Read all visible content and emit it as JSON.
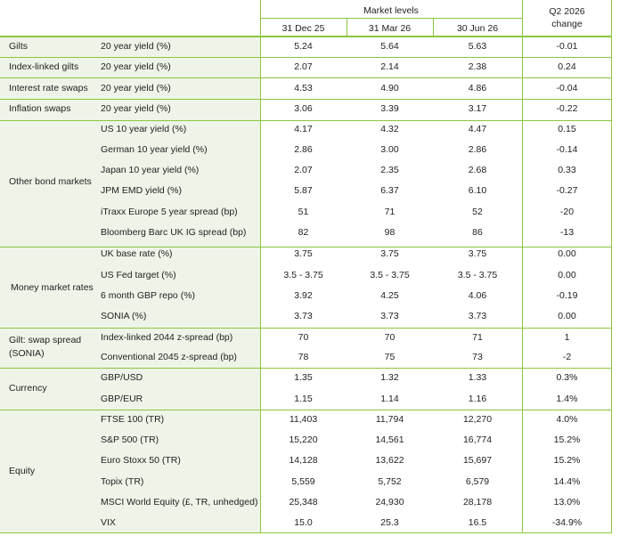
{
  "header": {
    "market_levels": "Market levels",
    "q2_change_line1": "Q2 2026",
    "q2_change_line2": "change",
    "dates": [
      "31 Dec 25",
      "31 Mar 26",
      "30 Jun 26"
    ]
  },
  "rows": [
    {
      "category": "Gilts",
      "item": "20 year yield (%)",
      "v": [
        "5.24",
        "5.64",
        "5.63",
        "-0.01"
      ]
    },
    {
      "category": "Index-linked gilts",
      "item": "20 year yield (%)",
      "v": [
        "2.07",
        "2.14",
        "2.38",
        "0.24"
      ]
    },
    {
      "category": "Interest rate swaps",
      "item": "20 year yield (%)",
      "v": [
        "4.53",
        "4.90",
        "4.86",
        "-0.04"
      ]
    },
    {
      "category": "Inflation swaps",
      "item": "20 year yield (%)",
      "v": [
        "3.06",
        "3.39",
        "3.17",
        "-0.22"
      ]
    },
    {
      "item": "US 10 year yield (%)",
      "v": [
        "4.17",
        "4.32",
        "4.47",
        "0.15"
      ]
    },
    {
      "item": "German 10 year yield (%)",
      "v": [
        "2.86",
        "3.00",
        "2.86",
        "-0.14"
      ]
    },
    {
      "item": "Japan 10 year yield (%)",
      "v": [
        "2.07",
        "2.35",
        "2.68",
        "0.33"
      ]
    },
    {
      "item": "JPM EMD yield (%)",
      "v": [
        "5.87",
        "6.37",
        "6.10",
        "-0.27"
      ]
    },
    {
      "item": "iTraxx Europe 5 year spread (bp)",
      "v": [
        "51",
        "71",
        "52",
        "-20"
      ]
    },
    {
      "item": "Bloomberg Barc UK IG spread (bp)",
      "v": [
        "82",
        "98",
        "86",
        "-13"
      ]
    },
    {
      "item": "UK base rate (%)",
      "v": [
        "3.75",
        "3.75",
        "3.75",
        "0.00"
      ]
    },
    {
      "item": "US Fed target (%)",
      "v": [
        "3.5 - 3.75",
        "3.5 - 3.75",
        "3.5 - 3.75",
        "0.00"
      ]
    },
    {
      "item": "6 month GBP repo (%)",
      "v": [
        "3.92",
        "4.25",
        "4.06",
        "-0.19"
      ]
    },
    {
      "item": "SONIA (%)",
      "v": [
        "3.73",
        "3.73",
        "3.73",
        "0.00"
      ]
    },
    {
      "item": "Index-linked 2044 z-spread (bp)",
      "v": [
        "70",
        "70",
        "71",
        "1"
      ]
    },
    {
      "item": "Conventional 2045 z-spread (bp)",
      "v": [
        "78",
        "75",
        "73",
        "-2"
      ]
    },
    {
      "item": "GBP/USD",
      "v": [
        "1.35",
        "1.32",
        "1.33",
        "0.3%"
      ]
    },
    {
      "item": "GBP/EUR",
      "v": [
        "1.15",
        "1.14",
        "1.16",
        "1.4%"
      ]
    },
    {
      "item": "FTSE 100 (TR)",
      "v": [
        "11,403",
        "11,794",
        "12,270",
        "4.0%"
      ]
    },
    {
      "item": "S&P 500 (TR)",
      "v": [
        "15,220",
        "14,561",
        "16,774",
        "15.2%"
      ]
    },
    {
      "item": "Euro Stoxx 50 (TR)",
      "v": [
        "14,128",
        "13,622",
        "15,697",
        "15.2%"
      ]
    },
    {
      "item": "Topix (TR)",
      "v": [
        "5,559",
        "5,752",
        "6,579",
        "14.4%"
      ]
    },
    {
      "item": "MSCI World Equity (£, TR, unhedged)",
      "v": [
        "25,348",
        "24,930",
        "28,178",
        "13.0%"
      ]
    },
    {
      "item": "VIX",
      "v": [
        "15.0",
        "25.3",
        "16.5",
        "-34.9%"
      ]
    }
  ],
  "groups": [
    {
      "label": "Other bond markets"
    },
    {
      "label": "Money market rates"
    },
    {
      "label_line1": "Gilt: swap spread",
      "label_line2": "(SONIA)"
    },
    {
      "label": "Currency"
    },
    {
      "label": "Equity"
    }
  ],
  "colors": {
    "rule": "#8cc63f",
    "shade": "#eef4e8"
  }
}
